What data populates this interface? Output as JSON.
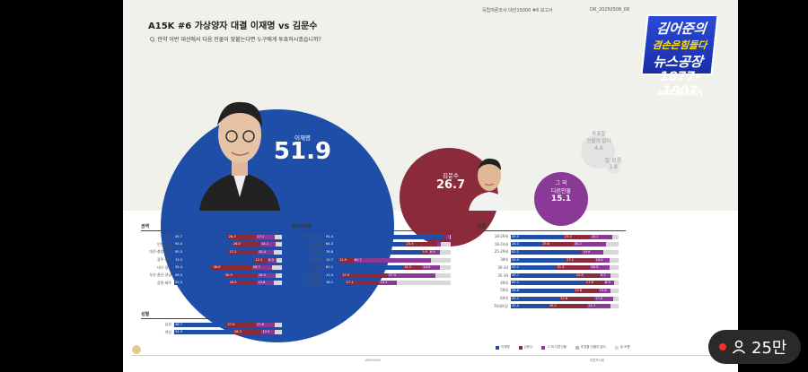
{
  "header": {
    "meta_left": "독립여론조사 대선15000 #6 보고서",
    "meta_right": "DR_20250506_08",
    "title": "A15K #6  가상양자 대결 이재명 vs 김문수",
    "question": "Q. 만약 이번 대선에서 다음 인물이 맞붙는다면 누구에게 투표하시겠습니까?"
  },
  "bubbles": [
    {
      "name": "이재명",
      "value": "51.9",
      "color": "#1f4ea8"
    },
    {
      "name": "김문수",
      "value": "26.7",
      "color": "#8b2a3a"
    },
    {
      "name": "그 외\n다른인물",
      "value": "15.1",
      "color": "#8a3a96"
    },
    {
      "name": "투표할\n인물이 없다",
      "value": "4.6",
      "color": "#cfcfcf"
    },
    {
      "name": "잘 모름",
      "value": "1.8",
      "color": "#cfcfcf"
    }
  ],
  "colors": {
    "c1": "#1f4ea8",
    "c2": "#8b2a3a",
    "c3": "#8a3a96",
    "c4": "#b8b8b8",
    "c5": "#d8d8d8"
  },
  "legend": [
    "이재명",
    "김문수",
    "그 외 다른인물",
    "투표할 인물이 없다",
    "잘 모름"
  ],
  "tables": {
    "region": {
      "title": "권역",
      "rows": [
        {
          "label": "서울",
          "v": [
            49.7,
            26.3,
            17.1
          ]
        },
        {
          "label": "인천·경기",
          "v": [
            54.0,
            26.0,
            14.1
          ]
        },
        {
          "label": "대전·충청·세종",
          "v": [
            50.3,
            27.1,
            15.4
          ]
        },
        {
          "label": "광주·전라",
          "v": [
            74.5,
            12.2,
            8.3
          ]
        },
        {
          "label": "대구·경북",
          "v": [
            35.4,
            36.9,
            18.7
          ]
        },
        {
          "label": "부산·울산·경남",
          "v": [
            46.5,
            30.9,
            16.5
          ]
        },
        {
          "label": "강원·제주",
          "v": [
            50.5,
            26.5,
            15.8
          ]
        }
      ]
    },
    "gender": {
      "title": "성별",
      "rows": [
        {
          "label": "남성",
          "v": [
            48.7,
            27.0,
            17.8
          ]
        },
        {
          "label": "여성",
          "v": [
            54.9,
            26.3,
            12.5
          ]
        }
      ]
    },
    "party": {
      "title": "정당지지도",
      "rows": [
        {
          "label": "더불어민주당",
          "v": [
            94.4,
            "",
            ""
          ]
        },
        {
          "label": "국민의힘",
          "v": [
            64.0,
            25.3,
            ""
          ]
        },
        {
          "label": "조국혁신당",
          "v": [
            76.8,
            5.9,
            8.9
          ]
        },
        {
          "label": "개혁신당",
          "v": [
            10.7,
            11.9,
            61.7
          ]
        },
        {
          "label": "진보당",
          "v": [
            62.1,
            15.3,
            14.0
          ]
        },
        {
          "label": "그외다른정당",
          "v": [
            13.0,
            37.0,
            37.9
          ]
        },
        {
          "label": "지지정당없음",
          "v": [
            16.1,
            27.1,
            14.1
          ]
        }
      ]
    },
    "age": {
      "title": "연령",
      "rows": [
        {
          "label": "18-29세",
          "v": [
            49.0,
            25.0,
            20.1
          ]
        },
        {
          "label": "18-24세",
          "v": [
            28.3,
            29.8,
            30.2
          ]
        },
        {
          "label": "25-29세",
          "v": [
            63.1,
            "",
            19.9
          ]
        },
        {
          "label": "30대",
          "v": [
            50.9,
            27.1,
            14.0
          ]
        },
        {
          "label": "30-34",
          "v": [
            42.1,
            31.4,
            18.3
          ]
        },
        {
          "label": "35-39",
          "v": [
            59.7,
            22.8,
            9.7
          ]
        },
        {
          "label": "40대",
          "v": [
            69.1,
            17.6,
            8.9
          ]
        },
        {
          "label": "50대",
          "v": [
            58.6,
            22.8,
            10.8
          ]
        },
        {
          "label": "60대",
          "v": [
            45.1,
            32.6,
            17.0
          ]
        },
        {
          "label": "70세이상",
          "v": [
            35.0,
            36.1,
            21.7
          ]
        }
      ]
    }
  },
  "footer": {
    "left": "ARS100%",
    "right": "여론조사꽃"
  },
  "logo": {
    "line1": "김어준의",
    "line2": "겸손은힘들다",
    "line3": "뉴스공장",
    "phone": "1877-1907",
    "ars": "ARS 참여하기"
  },
  "viewer": {
    "count": "25만"
  }
}
